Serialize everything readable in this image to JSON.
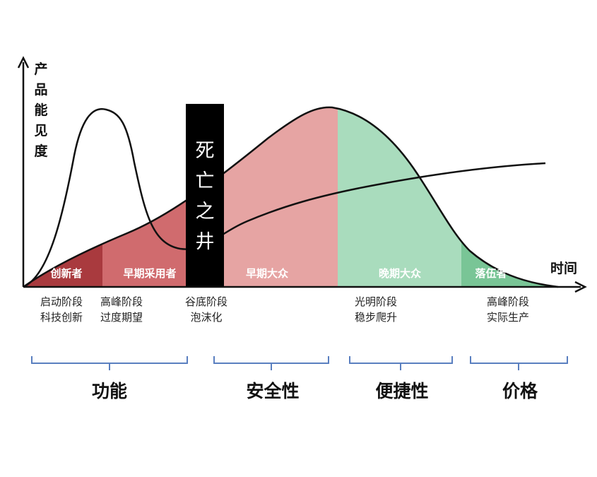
{
  "y_axis_label": [
    "产",
    "品",
    "能",
    "见",
    "度"
  ],
  "x_axis_label": "时间",
  "chasm": {
    "label": [
      "死",
      "亡",
      "之",
      "井"
    ]
  },
  "segments": [
    {
      "label": "创新者",
      "color": "#a93a3e"
    },
    {
      "label": "早期采用者",
      "color": "#d06b6e"
    },
    {
      "label": "早期大众",
      "color": "#e6a4a3"
    },
    {
      "label": "晚期大众",
      "color": "#a9dcbd"
    },
    {
      "label": "落伍者",
      "color": "#79c596"
    }
  ],
  "stage_labels": [
    {
      "line1": "启动阶段",
      "line2": "科技创新"
    },
    {
      "line1": "高峰阶段",
      "line2": "过度期望"
    },
    {
      "line1": "谷底阶段",
      "line2": "泡沫化"
    },
    {
      "line1": "光明阶段",
      "line2": "稳步爬升"
    },
    {
      "line1": "高峰阶段",
      "line2": "实际生产"
    }
  ],
  "categories": [
    {
      "label": "功能"
    },
    {
      "label": "安全性"
    },
    {
      "label": "便捷性"
    },
    {
      "label": "价格"
    }
  ],
  "colors": {
    "axis": "#111111",
    "curve": "#111111",
    "bracket": "#5a7fc0",
    "chasm": "#000000"
  }
}
